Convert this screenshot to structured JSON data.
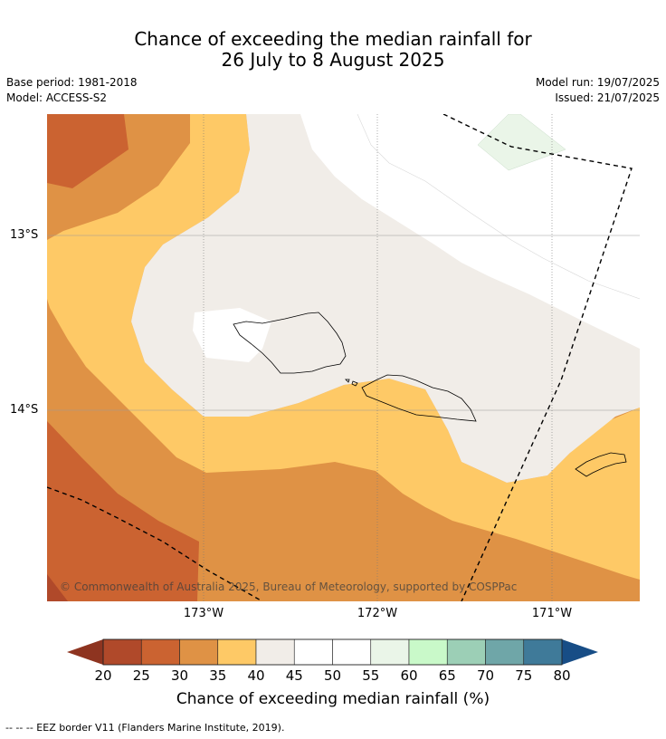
{
  "title": {
    "line1": "Chance of exceeding the median rainfall for",
    "line2": "26 July to 8 August 2025"
  },
  "meta": {
    "base_period": "Base period: 1981-2018",
    "model": "Model: ACCESS-S2",
    "model_run": "Model run: 19/07/2025",
    "issued": "Issued: 21/07/2025"
  },
  "map": {
    "lat_labels": [
      "13°S",
      "14°S"
    ],
    "lon_labels": [
      "173°W",
      "172°W",
      "171°W"
    ],
    "copyright": "© Commonwealth of Australia 2025, Bureau of Meteorology, supported by COSPPac"
  },
  "colorbar": {
    "ticks": [
      "20",
      "25",
      "30",
      "35",
      "40",
      "45",
      "50",
      "55",
      "60",
      "65",
      "70",
      "75",
      "80"
    ],
    "colors": [
      "#b0492a",
      "#cb6331",
      "#df9245",
      "#fec966",
      "#f1ede8",
      "#ffffff",
      "#ffffff",
      "#eaf5e8",
      "#c9f9c9",
      "#9ccfb6",
      "#6fa6a8",
      "#3f7a99"
    ],
    "under_color": "#8e3420",
    "over_color": "#174d86",
    "label": "Chance of exceeding median rainfall (%)"
  },
  "footer": {
    "eez_note": "--  --  -- EEZ border V11 (Flanders Marine Institute, 2019)."
  }
}
